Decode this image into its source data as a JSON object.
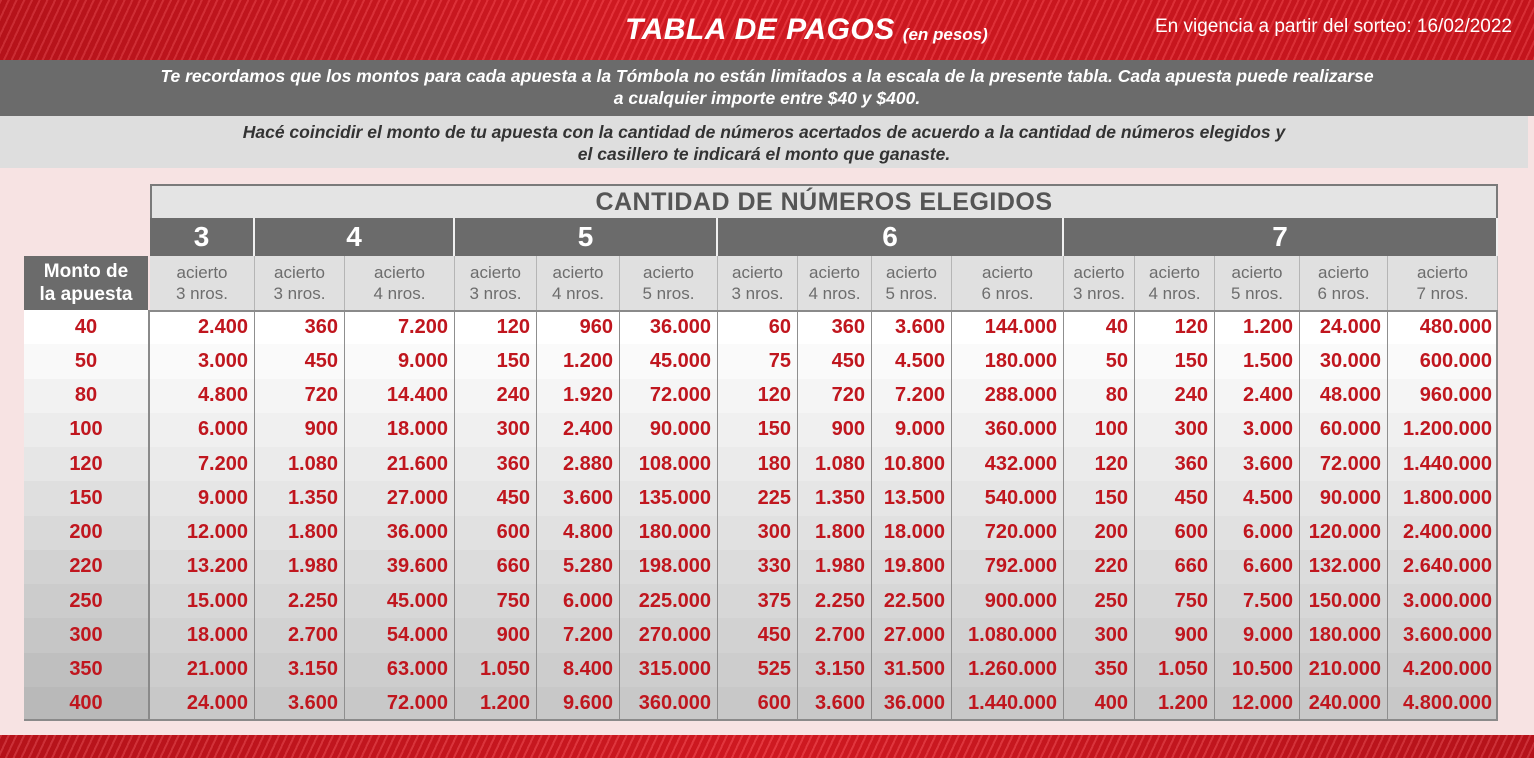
{
  "header": {
    "title": "TABLA DE PAGOS",
    "title_suffix": "(en pesos)",
    "validity": "En vigencia a partir del sorteo: 16/02/2022"
  },
  "notice": {
    "line1": "Te recordamos que los montos para cada apuesta a la Tómbola no están limitados a la escala de la presente tabla. Cada apuesta  puede realizarse",
    "line2": "a cualquier importe entre $40 y $400."
  },
  "instructions": {
    "line1": "Hacé coincidir el monto de tu apuesta con la cantidad de números acertados de acuerdo a la cantidad de números elegidos y",
    "line2": "el casillero te indicará el monto que ganaste."
  },
  "colors": {
    "accent_red": "#c0161e",
    "header_gray": "#6b6b6b",
    "subheader_gray": "#e0e0e0"
  },
  "table": {
    "title": "CANTIDAD DE NÚMEROS ELEGIDOS",
    "row_header_line1": "Monto de",
    "row_header_line2": "la apuesta",
    "groups": [
      "3",
      "4",
      "5",
      "6",
      "7"
    ],
    "columns": [
      {
        "line1": "acierto",
        "line2": "3 nros."
      },
      {
        "line1": "acierto",
        "line2": "3 nros."
      },
      {
        "line1": "acierto",
        "line2": "4 nros."
      },
      {
        "line1": "acierto",
        "line2": "3 nros."
      },
      {
        "line1": "acierto",
        "line2": "4 nros."
      },
      {
        "line1": "acierto",
        "line2": "5 nros."
      },
      {
        "line1": "acierto",
        "line2": "3 nros."
      },
      {
        "line1": "acierto",
        "line2": "4 nros."
      },
      {
        "line1": "acierto",
        "line2": "5 nros."
      },
      {
        "line1": "acierto",
        "line2": "6 nros."
      },
      {
        "line1": "acierto",
        "line2": "3 nros."
      },
      {
        "line1": "acierto",
        "line2": "4 nros."
      },
      {
        "line1": "acierto",
        "line2": "5 nros."
      },
      {
        "line1": "acierto",
        "line2": "6 nros."
      },
      {
        "line1": "acierto",
        "line2": "7 nros."
      }
    ],
    "rows": [
      {
        "bet": "40",
        "values": [
          "2.400",
          "360",
          "7.200",
          "120",
          "960",
          "36.000",
          "60",
          "360",
          "3.600",
          "144.000",
          "40",
          "120",
          "1.200",
          "24.000",
          "480.000"
        ]
      },
      {
        "bet": "50",
        "values": [
          "3.000",
          "450",
          "9.000",
          "150",
          "1.200",
          "45.000",
          "75",
          "450",
          "4.500",
          "180.000",
          "50",
          "150",
          "1.500",
          "30.000",
          "600.000"
        ]
      },
      {
        "bet": "80",
        "values": [
          "4.800",
          "720",
          "14.400",
          "240",
          "1.920",
          "72.000",
          "120",
          "720",
          "7.200",
          "288.000",
          "80",
          "240",
          "2.400",
          "48.000",
          "960.000"
        ]
      },
      {
        "bet": "100",
        "values": [
          "6.000",
          "900",
          "18.000",
          "300",
          "2.400",
          "90.000",
          "150",
          "900",
          "9.000",
          "360.000",
          "100",
          "300",
          "3.000",
          "60.000",
          "1.200.000"
        ]
      },
      {
        "bet": "120",
        "values": [
          "7.200",
          "1.080",
          "21.600",
          "360",
          "2.880",
          "108.000",
          "180",
          "1.080",
          "10.800",
          "432.000",
          "120",
          "360",
          "3.600",
          "72.000",
          "1.440.000"
        ]
      },
      {
        "bet": "150",
        "values": [
          "9.000",
          "1.350",
          "27.000",
          "450",
          "3.600",
          "135.000",
          "225",
          "1.350",
          "13.500",
          "540.000",
          "150",
          "450",
          "4.500",
          "90.000",
          "1.800.000"
        ]
      },
      {
        "bet": "200",
        "values": [
          "12.000",
          "1.800",
          "36.000",
          "600",
          "4.800",
          "180.000",
          "300",
          "1.800",
          "18.000",
          "720.000",
          "200",
          "600",
          "6.000",
          "120.000",
          "2.400.000"
        ]
      },
      {
        "bet": "220",
        "values": [
          "13.200",
          "1.980",
          "39.600",
          "660",
          "5.280",
          "198.000",
          "330",
          "1.980",
          "19.800",
          "792.000",
          "220",
          "660",
          "6.600",
          "132.000",
          "2.640.000"
        ]
      },
      {
        "bet": "250",
        "values": [
          "15.000",
          "2.250",
          "45.000",
          "750",
          "6.000",
          "225.000",
          "375",
          "2.250",
          "22.500",
          "900.000",
          "250",
          "750",
          "7.500",
          "150.000",
          "3.000.000"
        ]
      },
      {
        "bet": "300",
        "values": [
          "18.000",
          "2.700",
          "54.000",
          "900",
          "7.200",
          "270.000",
          "450",
          "2.700",
          "27.000",
          "1.080.000",
          "300",
          "900",
          "9.000",
          "180.000",
          "3.600.000"
        ]
      },
      {
        "bet": "350",
        "values": [
          "21.000",
          "3.150",
          "63.000",
          "1.050",
          "8.400",
          "315.000",
          "525",
          "3.150",
          "31.500",
          "1.260.000",
          "350",
          "1.050",
          "10.500",
          "210.000",
          "4.200.000"
        ]
      },
      {
        "bet": "400",
        "values": [
          "24.000",
          "3.600",
          "72.000",
          "1.200",
          "9.600",
          "360.000",
          "600",
          "3.600",
          "36.000",
          "1.440.000",
          "400",
          "1.200",
          "12.000",
          "240.000",
          "4.800.000"
        ]
      }
    ]
  }
}
